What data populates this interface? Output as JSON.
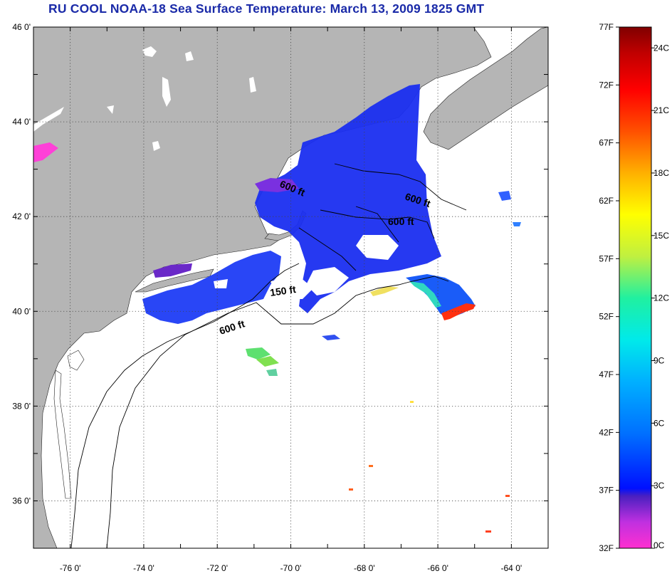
{
  "title": "RU COOL  NOAA-18  Sea Surface Temperature:  March 13, 2009 1825 GMT",
  "map": {
    "lat_labels": [
      "46 0'",
      "44 0'",
      "42 0'",
      "40 0'",
      "38 0'",
      "36 0'"
    ],
    "lon_labels": [
      "-76 0'",
      "-74 0'",
      "-72 0'",
      "-70 0'",
      "-68 0'",
      "-66 0'",
      "-64 0'"
    ],
    "lat_range": [
      35,
      46
    ],
    "lon_range": [
      -77,
      -63
    ],
    "contour_labels": [
      "600 ft",
      "600 ft",
      "600 ft",
      "150 ft",
      "600 ft"
    ],
    "colors": {
      "land": "#b5b5b5",
      "ocean": "#ffffff",
      "bathymetry": "#000000",
      "grid": "#444444"
    }
  },
  "colorbar": {
    "fahrenheit_labels": [
      "77F",
      "72F",
      "67F",
      "62F",
      "57F",
      "52F",
      "47F",
      "42F",
      "37F",
      "32F"
    ],
    "celsius_labels": [
      "24C",
      "21C",
      "18C",
      "15C",
      "12C",
      "9C",
      "6C",
      "3C",
      "0C"
    ],
    "range_f": [
      32,
      77
    ],
    "gradient_colors": [
      "#ff2fd0",
      "#c030e0",
      "#4a20c0",
      "#0010ff",
      "#0070ff",
      "#00b0ff",
      "#00eaea",
      "#20f0a0",
      "#c0f040",
      "#ffff00",
      "#ffb000",
      "#ff5000",
      "#ff0000",
      "#c00000",
      "#800000"
    ]
  }
}
